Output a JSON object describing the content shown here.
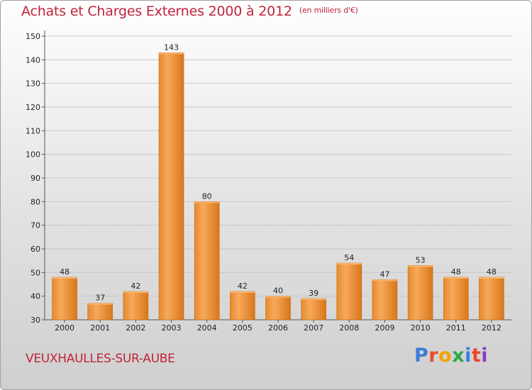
{
  "header": {
    "title": "Achats et Charges Externes 2000 à 2012",
    "subtitle": "(en milliers d'€)"
  },
  "footer": {
    "commune": "VEUXHAULLES-SUR-AUBE",
    "logo": "Proxiti",
    "logo_colors": [
      "#3a7dd8",
      "#e8492a",
      "#f4a300",
      "#2aa84a",
      "#3a7dd8",
      "#e8492a",
      "#8a3cc8"
    ]
  },
  "colors": {
    "title": "#c0243a",
    "bar_light": "#f7a95a",
    "bar_dark": "#e07a18"
  },
  "chart_data": {
    "type": "bar",
    "title": "Achats et Charges Externes 2000 à 2012",
    "subtitle": "(en milliers d'€)",
    "xlabel": "",
    "ylabel": "",
    "categories": [
      "2000",
      "2001",
      "2002",
      "2003",
      "2004",
      "2005",
      "2006",
      "2007",
      "2008",
      "2009",
      "2010",
      "2011",
      "2012"
    ],
    "values": [
      48,
      37,
      42,
      143,
      80,
      42,
      40,
      39,
      54,
      47,
      53,
      48,
      48
    ],
    "ylim": [
      30,
      150
    ],
    "yticks": [
      30,
      40,
      50,
      60,
      70,
      80,
      90,
      100,
      110,
      120,
      130,
      140,
      150
    ],
    "grid": true,
    "legend": "none"
  }
}
